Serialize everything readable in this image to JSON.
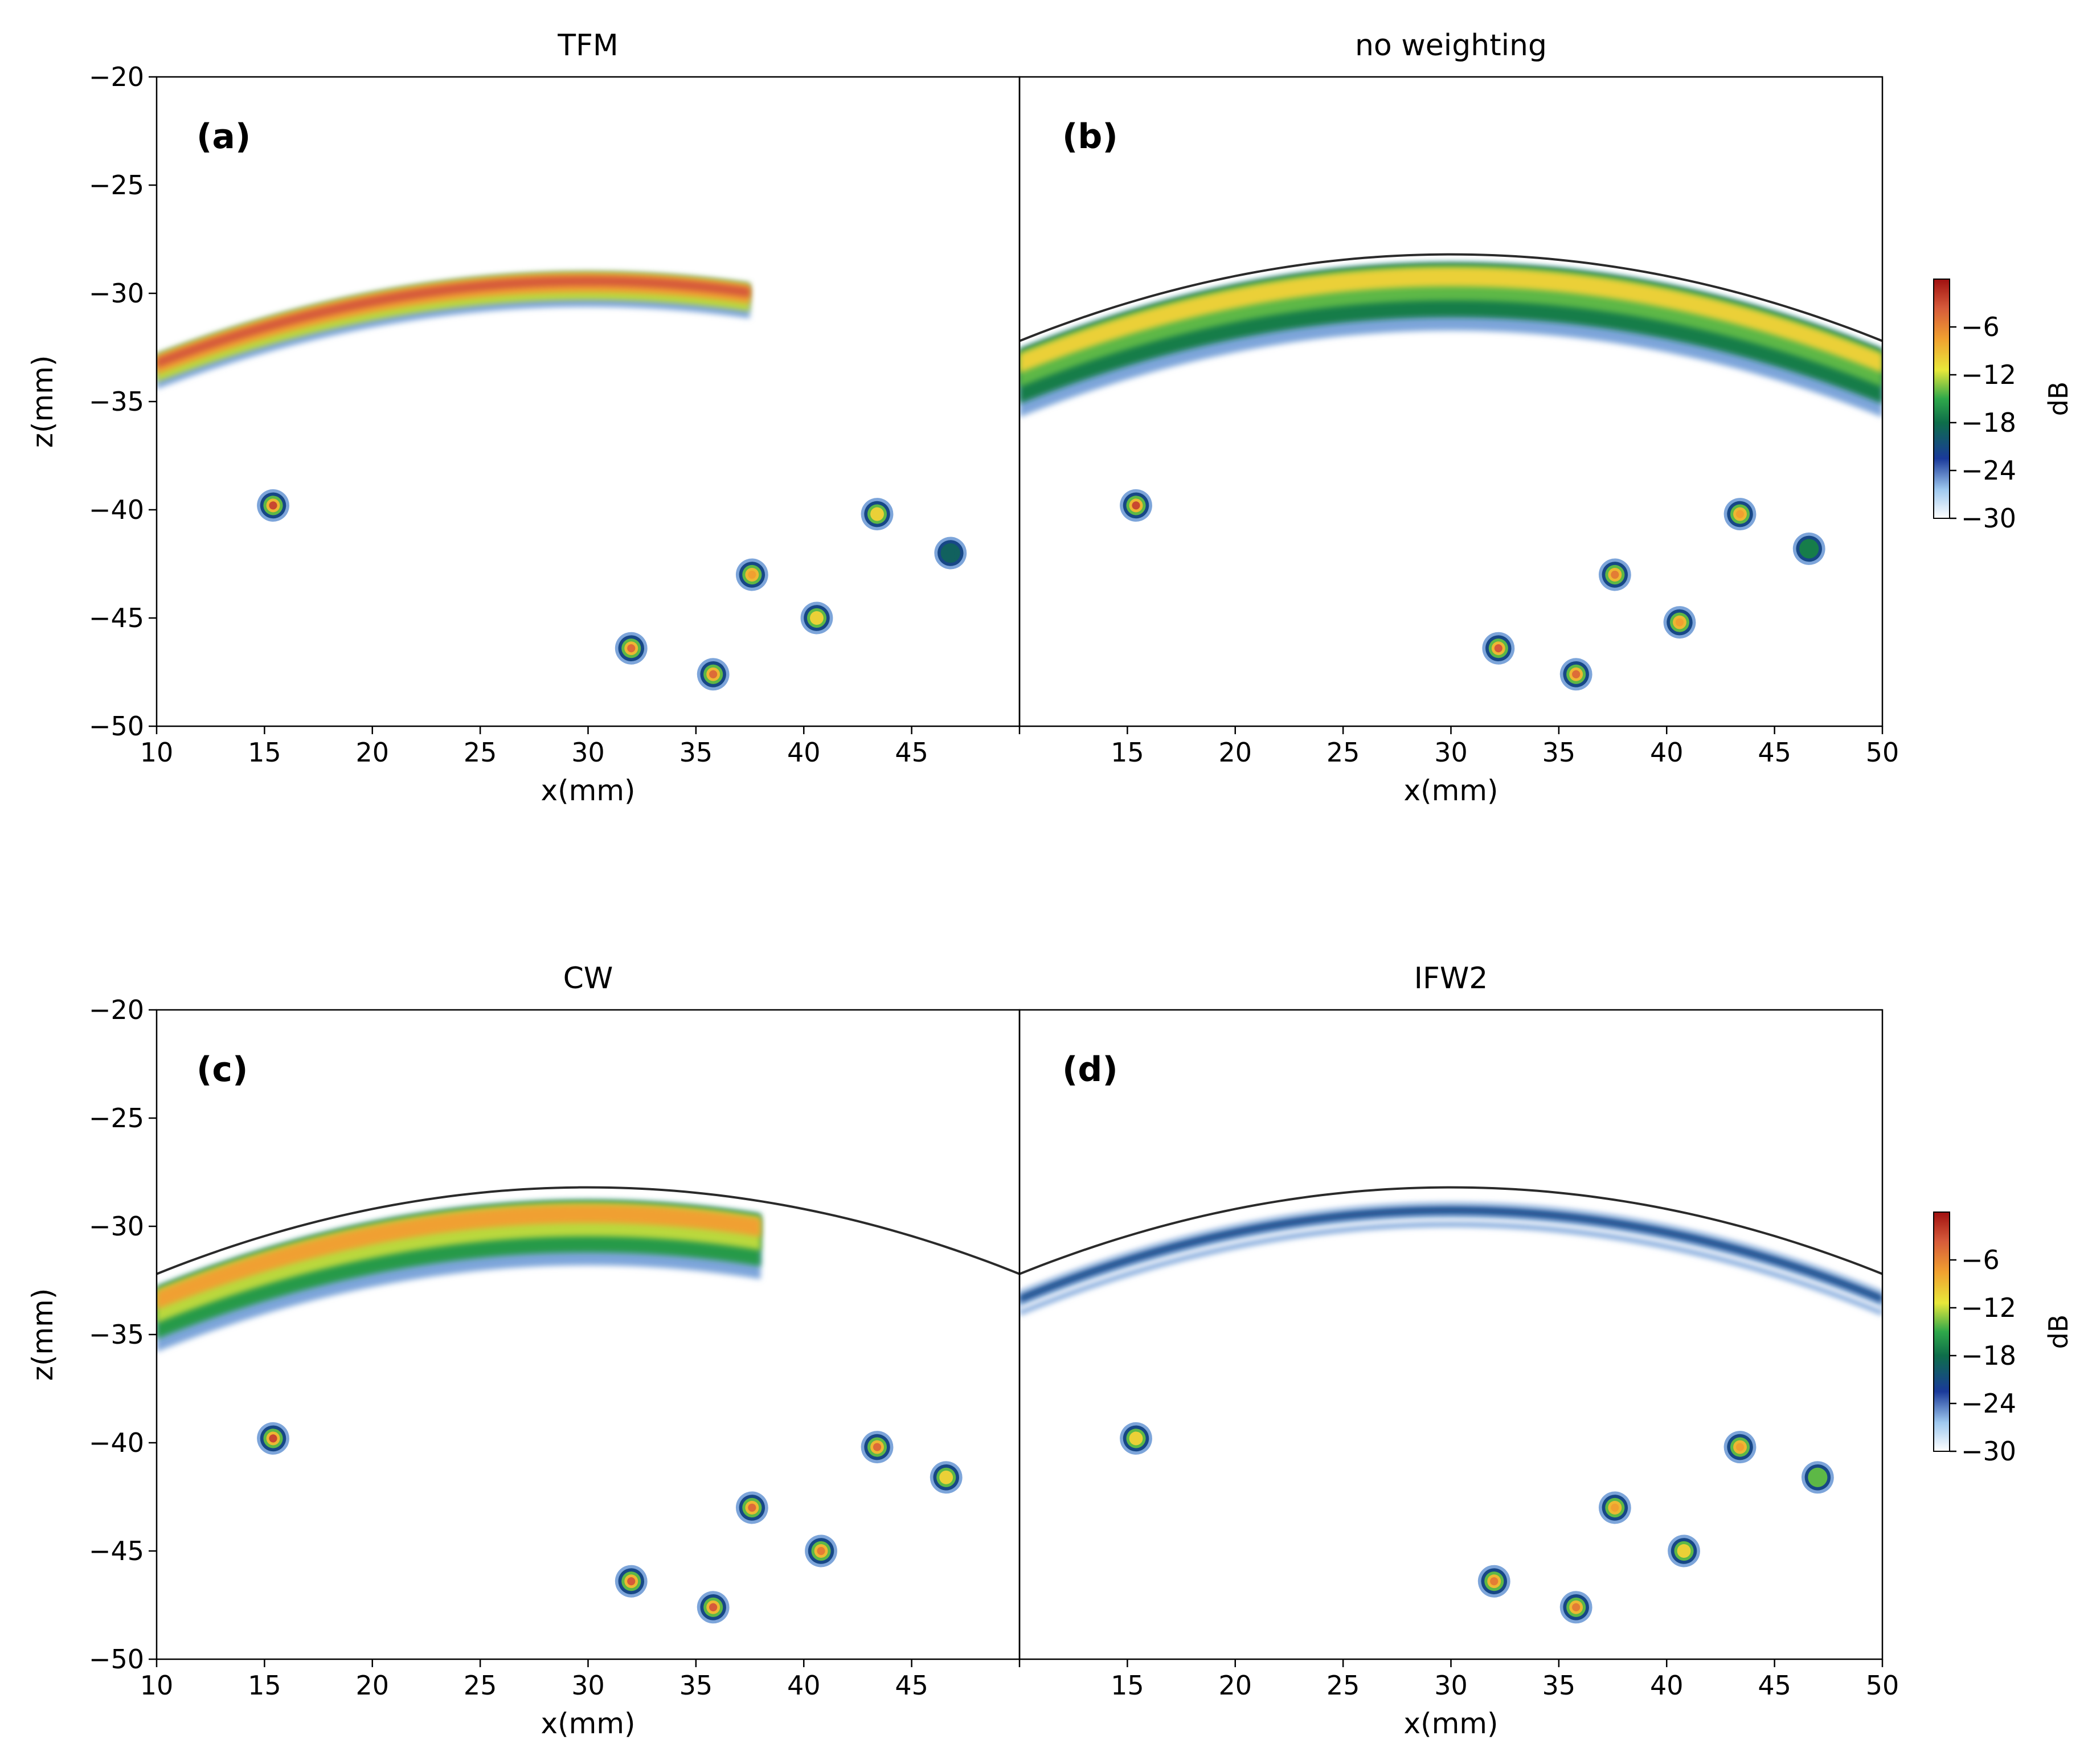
{
  "figure": {
    "colorbar": {
      "unit_label": "dB",
      "ticks": [
        -6,
        -12,
        -18,
        -24,
        -30
      ],
      "range": [
        -30,
        0
      ],
      "colors": [
        "#ffffff",
        "#9ec8ef",
        "#1a3a9a",
        "#0e6e4a",
        "#2fa84a",
        "#e8e83a",
        "#f0a030",
        "#d65a3a",
        "#a01010"
      ]
    },
    "surface_color": "#2a2a2a"
  },
  "chart_data": [
    {
      "type": "heatmap",
      "panel_label": "(a)",
      "title": "TFM",
      "xlabel": "x(mm)",
      "ylabel": "z(mm)",
      "xlim": [
        10,
        50
      ],
      "ylim": [
        -50,
        -20
      ],
      "xticks": [
        10,
        15,
        20,
        25,
        30,
        35,
        40,
        45
      ],
      "yticks": [
        -20,
        -25,
        -30,
        -35,
        -40,
        -45,
        -50
      ],
      "show_surface_line": false,
      "backwall_band": {
        "x_start": 10,
        "x_end": 37.5,
        "z_peak": -29.0,
        "peak_x": 30,
        "z_at_left": -32.8,
        "thickness_mm": 1.3,
        "level_db": -6
      },
      "defects": [
        {
          "x": 15.4,
          "z": -39.8,
          "peak_db": -3
        },
        {
          "x": 32.0,
          "z": -46.4,
          "peak_db": -5
        },
        {
          "x": 35.8,
          "z": -47.6,
          "peak_db": -5
        },
        {
          "x": 37.6,
          "z": -43.0,
          "peak_db": -8
        },
        {
          "x": 40.6,
          "z": -45.0,
          "peak_db": -10
        },
        {
          "x": 43.4,
          "z": -40.2,
          "peak_db": -10
        },
        {
          "x": 46.8,
          "z": -42.0,
          "peak_db": -20
        }
      ]
    },
    {
      "type": "heatmap",
      "panel_label": "(b)",
      "title": "no weighting",
      "xlabel": "x(mm)",
      "ylabel": "",
      "xlim": [
        10,
        50
      ],
      "ylim": [
        -50,
        -20
      ],
      "xticks": [
        15,
        20,
        25,
        30,
        35,
        40,
        45,
        50
      ],
      "yticks": [],
      "show_surface_line": true,
      "surface": {
        "peak_x": 30,
        "peak_z": -28.2,
        "edge_z": -32.2
      },
      "backwall_band": {
        "x_start": 10,
        "x_end": 50,
        "z_peak": -28.6,
        "peak_x": 30,
        "z_at_left": -32.6,
        "thickness_mm": 2.5,
        "level_db": -12
      },
      "defects": [
        {
          "x": 15.4,
          "z": -39.8,
          "peak_db": -3
        },
        {
          "x": 32.2,
          "z": -46.4,
          "peak_db": -4
        },
        {
          "x": 35.8,
          "z": -47.6,
          "peak_db": -5
        },
        {
          "x": 37.6,
          "z": -43.0,
          "peak_db": -6
        },
        {
          "x": 40.6,
          "z": -45.2,
          "peak_db": -8
        },
        {
          "x": 43.4,
          "z": -40.2,
          "peak_db": -8
        },
        {
          "x": 46.6,
          "z": -41.8,
          "peak_db": -18
        }
      ]
    },
    {
      "type": "heatmap",
      "panel_label": "(c)",
      "title": "CW",
      "xlabel": "x(mm)",
      "ylabel": "z(mm)",
      "xlim": [
        10,
        50
      ],
      "ylim": [
        -50,
        -20
      ],
      "xticks": [
        10,
        15,
        20,
        25,
        30,
        35,
        40,
        45
      ],
      "yticks": [
        -20,
        -25,
        -30,
        -35,
        -40,
        -45,
        -50
      ],
      "show_surface_line": true,
      "surface": {
        "peak_x": 30,
        "peak_z": -28.2,
        "edge_z": -32.2
      },
      "backwall_band": {
        "x_start": 10,
        "x_end": 38,
        "z_peak": -28.8,
        "peak_x": 30,
        "z_at_left": -32.8,
        "thickness_mm": 2.4,
        "level_db": -10
      },
      "defects": [
        {
          "x": 15.4,
          "z": -39.8,
          "peak_db": -3
        },
        {
          "x": 32.0,
          "z": -46.4,
          "peak_db": -4
        },
        {
          "x": 35.8,
          "z": -47.6,
          "peak_db": -4
        },
        {
          "x": 37.6,
          "z": -43.0,
          "peak_db": -5
        },
        {
          "x": 40.8,
          "z": -45.0,
          "peak_db": -6
        },
        {
          "x": 43.4,
          "z": -40.2,
          "peak_db": -5
        },
        {
          "x": 46.6,
          "z": -41.6,
          "peak_db": -10
        }
      ]
    },
    {
      "type": "heatmap",
      "panel_label": "(d)",
      "title": "IFW2",
      "xlabel": "x(mm)",
      "ylabel": "",
      "xlim": [
        10,
        50
      ],
      "ylim": [
        -50,
        -20
      ],
      "xticks": [
        15,
        20,
        25,
        30,
        35,
        40,
        45,
        50
      ],
      "yticks": [],
      "show_surface_line": true,
      "surface": {
        "peak_x": 30,
        "peak_z": -28.2,
        "edge_z": -32.2
      },
      "backwall_band": {
        "x_start": 10,
        "x_end": 50,
        "z_peak": -28.9,
        "peak_x": 30,
        "z_at_left": -33.0,
        "thickness_mm": 0.9,
        "level_db": -24
      },
      "defects": [
        {
          "x": 15.4,
          "z": -39.8,
          "peak_db": -10
        },
        {
          "x": 32.0,
          "z": -46.4,
          "peak_db": -6
        },
        {
          "x": 35.8,
          "z": -47.6,
          "peak_db": -6
        },
        {
          "x": 37.6,
          "z": -43.0,
          "peak_db": -8
        },
        {
          "x": 40.8,
          "z": -45.0,
          "peak_db": -10
        },
        {
          "x": 43.4,
          "z": -40.2,
          "peak_db": -8
        },
        {
          "x": 47.0,
          "z": -41.6,
          "peak_db": -14
        }
      ]
    }
  ]
}
